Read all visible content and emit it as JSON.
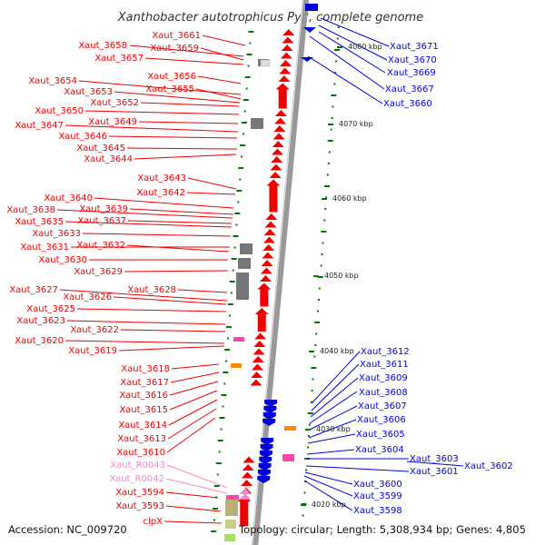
{
  "title": "Xanthobacter autotrophicus Py2, complete genome",
  "footer": {
    "accession": "Accession: NC_009720",
    "topology": "Topology: circular; Length: 5,308,934 bp; Genes: 4,805"
  },
  "colors": {
    "forward": "#ee0000",
    "reverse": "#0000dd",
    "rna": "#ee88cc",
    "backbone": "#999999",
    "tick": "#007700",
    "pseudo": "#777777",
    "highlight": "#ff8800",
    "misc": "#b8b078"
  },
  "scale_labels": [
    "4080 kbp",
    "4070 kbp",
    "4060 kbp",
    "4050 kbp",
    "4040 kbp",
    "4030 kbp",
    "4020 kbp"
  ],
  "left_labels": [
    "Xaut_3661",
    "Xaut_3658",
    "Xaut_3659",
    "Xaut_3657",
    "Xaut_3656",
    "Xaut_3654",
    "Xaut_3655",
    "Xaut_3653",
    "Xaut_3652",
    "Xaut_3650",
    "Xaut_3649",
    "Xaut_3647",
    "Xaut_3646",
    "Xaut_3645",
    "Xaut_3644",
    "Xaut_3643",
    "Xaut_3642",
    "Xaut_3640",
    "Xaut_3639",
    "Xaut_3638",
    "Xaut_3637",
    "Xaut_3635",
    "Xaut_3633",
    "Xaut_3631",
    "Xaut_3632",
    "Xaut_3630",
    "Xaut_3629",
    "Xaut_3628",
    "Xaut_3627",
    "Xaut_3626",
    "Xaut_3625",
    "Xaut_3623",
    "Xaut_3622",
    "Xaut_3620",
    "Xaut_3619",
    "Xaut_3618",
    "Xaut_3617",
    "Xaut_3616",
    "Xaut_3615",
    "Xaut_3614",
    "Xaut_3613",
    "Xaut_3610",
    "Xaut_R0043",
    "Xaut_R0042",
    "Xaut_3594",
    "Xaut_3593",
    "clpX"
  ],
  "right_labels": [
    "Xaut_3671",
    "Xaut_3670",
    "Xaut_3669",
    "Xaut_3667",
    "Xaut_3660",
    "Xaut_3612",
    "Xaut_3611",
    "Xaut_3609",
    "Xaut_3608",
    "Xaut_3607",
    "Xaut_3606",
    "Xaut_3605",
    "Xaut_3604",
    "Xaut_3603",
    "Xaut_3602",
    "Xaut_3601",
    "Xaut_3600",
    "Xaut_3599",
    "Xaut_3598"
  ]
}
